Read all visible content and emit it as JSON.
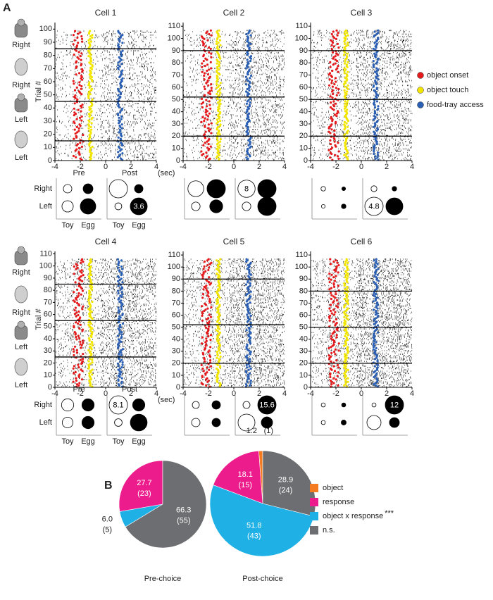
{
  "panel_labels": [
    "A",
    "B"
  ],
  "raster_panel": {
    "trial_axis_label": "Trial #",
    "time_unit_label": "(sec)",
    "condition_labels": [
      "Right",
      "Right",
      "Left",
      "Left"
    ],
    "legend": [
      {
        "name": "object onset",
        "color": "#e41a1c"
      },
      {
        "name": "object touch",
        "color": "#f2e600"
      },
      {
        "name": "food-tray access",
        "color": "#2b5fb3"
      }
    ],
    "xlim": [
      -4,
      4
    ],
    "xticks": [
      -4,
      -2,
      0,
      2,
      4
    ],
    "phase_labels": [
      "Pre",
      "Post"
    ],
    "row_labels": [
      "Right",
      "Left"
    ],
    "col_labels": [
      "Toy",
      "Egg"
    ],
    "cells": [
      {
        "title": "Cell 1",
        "ylim": [
          0,
          105
        ],
        "yticks": [
          0,
          10,
          20,
          30,
          40,
          50,
          60,
          70,
          80,
          90,
          100
        ],
        "block_boundaries": [
          15,
          45,
          85
        ],
        "pre": [
          [
            0.9,
            1.2
          ],
          [
            1.6,
            3.0
          ]
        ],
        "post": [
          [
            4.2,
            0.9
          ],
          [
            0.6,
            3.6
          ]
        ],
        "post_value_labels": [
          [
            null,
            null
          ],
          [
            null,
            "3.6"
          ]
        ]
      },
      {
        "title": "Cell 2",
        "ylim": [
          0,
          113
        ],
        "yticks": [
          0,
          10,
          20,
          30,
          40,
          50,
          60,
          70,
          80,
          90,
          100,
          110
        ],
        "block_boundaries": [
          20,
          52,
          90
        ],
        "pre": [
          [
            6.7,
            9
          ],
          [
            2,
            4.5
          ]
        ],
        "post": [
          [
            8,
            9
          ],
          [
            2,
            9
          ]
        ],
        "post_value_labels": [
          [
            "8",
            null
          ],
          [
            null,
            null
          ]
        ]
      },
      {
        "title": "Cell 3",
        "ylim": [
          0,
          113
        ],
        "yticks": [
          0,
          10,
          20,
          30,
          40,
          50,
          60,
          70,
          80,
          90,
          100,
          110
        ],
        "block_boundaries": [
          20,
          50,
          90
        ],
        "pre": [
          [
            0.3,
            0.2
          ],
          [
            0.2,
            0.3
          ]
        ],
        "post": [
          [
            0.5,
            0.3
          ],
          [
            4.8,
            4.1
          ]
        ],
        "post_value_labels": [
          [
            null,
            null
          ],
          [
            "4.8",
            null
          ]
        ]
      },
      {
        "title": "Cell 4",
        "ylim": [
          0,
          112
        ],
        "yticks": [
          0,
          10,
          20,
          30,
          40,
          50,
          60,
          70,
          80,
          90,
          100,
          110
        ],
        "block_boundaries": [
          25,
          55,
          85
        ],
        "pre": [
          [
            3.6,
            3.6
          ],
          [
            2.8,
            3.6
          ]
        ],
        "post": [
          [
            8.1,
            3.6
          ],
          [
            1.4,
            6.8
          ]
        ],
        "post_value_labels": [
          [
            "8.1",
            null
          ],
          [
            null,
            null
          ]
        ]
      },
      {
        "title": "Cell 5",
        "ylim": [
          0,
          113
        ],
        "yticks": [
          0,
          10,
          20,
          30,
          40,
          50,
          60,
          70,
          80,
          90,
          100,
          110
        ],
        "block_boundaries": [
          20,
          52,
          90
        ],
        "pre": [
          [
            2.3,
            3.3
          ],
          [
            3.3,
            3.3
          ]
        ],
        "post": [
          [
            2.3,
            15.6
          ],
          [
            13.3,
            5.9
          ]
        ],
        "post_value_labels": [
          [
            null,
            "15.6"
          ],
          [
            null,
            null
          ]
        ]
      },
      {
        "title": "Cell 6",
        "ylim": [
          0,
          113
        ],
        "yticks": [
          0,
          10,
          20,
          30,
          40,
          50,
          60,
          70,
          80,
          90,
          100,
          110
        ],
        "block_boundaries": [
          20,
          50,
          80
        ],
        "pre": [
          [
            0.6,
            0.6
          ],
          [
            0.6,
            0.9
          ]
        ],
        "post": [
          [
            0.6,
            12
          ],
          [
            7.1,
            3.5
          ]
        ],
        "post_value_labels": [
          [
            null,
            "12"
          ],
          [
            null,
            null
          ]
        ]
      }
    ]
  },
  "chart_data": [
    {
      "type": "pie",
      "title": "Pre-choice",
      "categories": [
        "object",
        "response",
        "object x response",
        "n.s."
      ],
      "colors": [
        "#f47b20",
        "#ec1c8c",
        "#1fb1e6",
        "#6d6e71"
      ],
      "values": [
        0,
        27.7,
        6.0,
        66.3
      ],
      "value_labels": [
        null,
        "27.7",
        "6.0",
        "66.3"
      ],
      "counts": [
        0,
        23,
        5,
        55
      ],
      "count_labels": [
        null,
        "(23)",
        "(5)",
        "(55)"
      ],
      "annotation": "***"
    },
    {
      "type": "pie",
      "title": "Post-choice",
      "categories": [
        "object",
        "response",
        "object x response",
        "n.s."
      ],
      "colors": [
        "#f47b20",
        "#ec1c8c",
        "#1fb1e6",
        "#6d6e71"
      ],
      "values": [
        1.2,
        18.1,
        51.8,
        28.9
      ],
      "value_labels": [
        "1.2",
        "18.1",
        "51.8",
        "28.9"
      ],
      "counts": [
        1,
        15,
        43,
        24
      ],
      "count_labels": [
        "(1)",
        "(15)",
        "(43)",
        "(24)"
      ]
    }
  ]
}
